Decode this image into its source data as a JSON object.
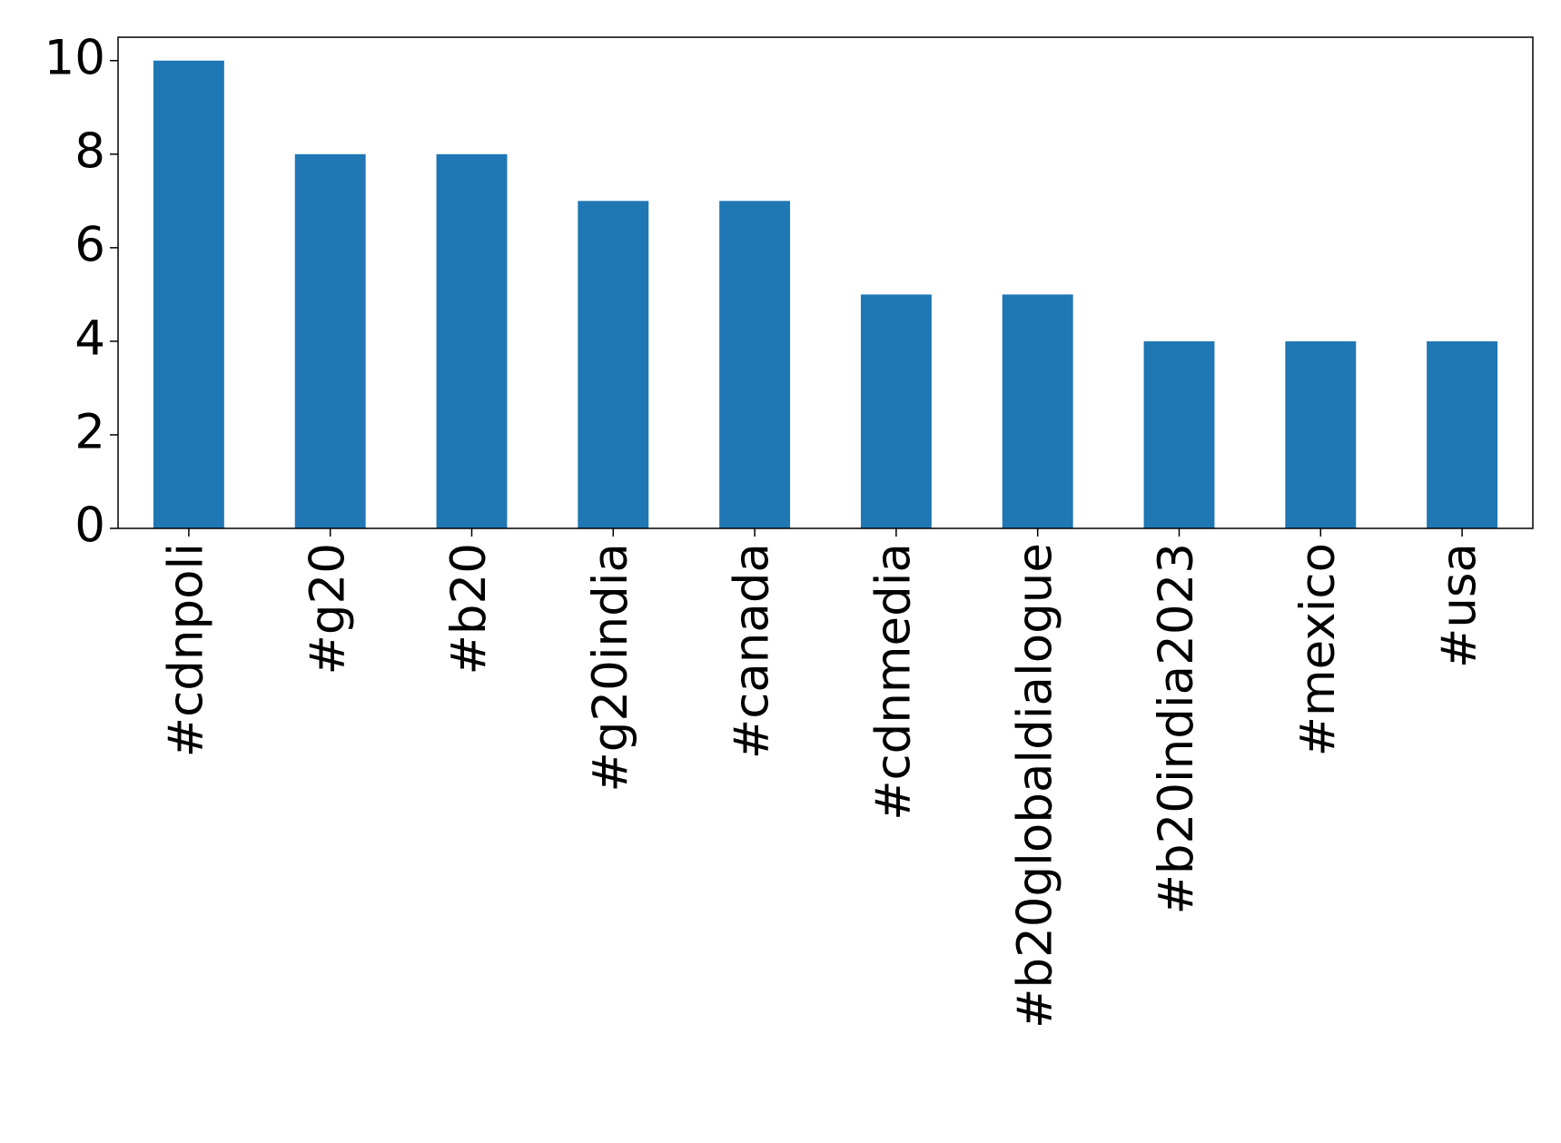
{
  "chart_data": {
    "type": "bar",
    "categories": [
      "#cdnpoli",
      "#g20",
      "#b20",
      "#g20india",
      "#canada",
      "#cdnmedia",
      "#b20globaldialogue",
      "#b20india2023",
      "#mexico",
      "#usa"
    ],
    "values": [
      10,
      8,
      8,
      7,
      7,
      5,
      5,
      4,
      4,
      4
    ],
    "color": "#1f77b4",
    "ylim": [
      0,
      10.5
    ],
    "yticks": [
      0,
      2,
      4,
      6,
      8,
      10
    ],
    "grid": false
  }
}
